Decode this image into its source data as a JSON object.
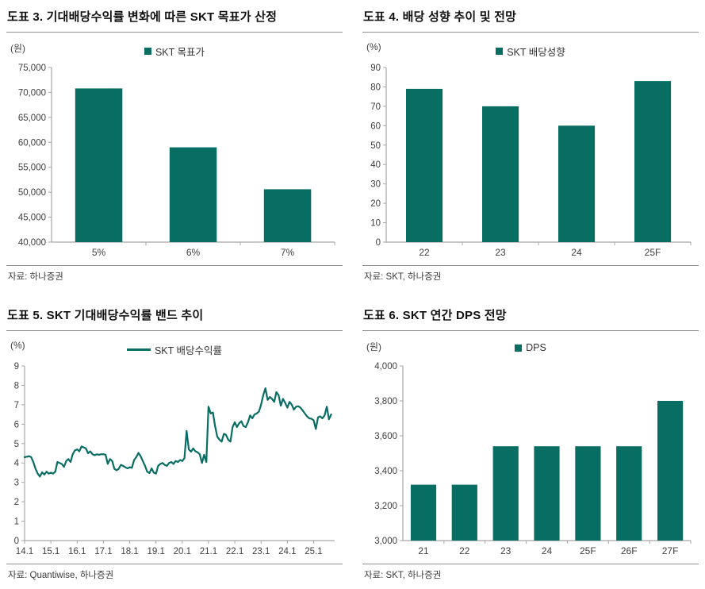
{
  "colors": {
    "accent": "#086e64",
    "axis": "#a6a6a6",
    "tick_text": "#404040",
    "title_text": "#111111",
    "divider": "#8f8f8f"
  },
  "chart_data": [
    {
      "type": "bar",
      "title": "도표 3. 기대배당수익률 변화에 따른 SKT 목표가 산정",
      "unit": "(원)",
      "legend": "SKT 목표가",
      "categories": [
        "5%",
        "6%",
        "7%"
      ],
      "values": [
        70800,
        59000,
        50600
      ],
      "ylim": [
        40000,
        75000
      ],
      "ytick_step": 5000,
      "comma": true,
      "bar_ratio": 0.5,
      "legend_position": "top-center",
      "grid": false,
      "source": "자료: 하나증권"
    },
    {
      "type": "bar",
      "title": "도표 4. 배당 성향 추이 및 전망",
      "unit": "(%)",
      "legend": "SKT 배당성향",
      "categories": [
        "22",
        "23",
        "24",
        "25F"
      ],
      "values": [
        79,
        70,
        60,
        83
      ],
      "ylim": [
        0,
        90
      ],
      "ytick_step": 10,
      "comma": false,
      "bar_ratio": 0.48,
      "legend_position": "top-center",
      "grid": false,
      "source": "자료: SKT, 하나증권"
    },
    {
      "type": "line",
      "title": "도표 5. SKT 기대배당수익률 밴드 추이",
      "unit": "(%)",
      "legend": "SKT 배당수익률",
      "x_start_year": 2014,
      "points_per_year": 12,
      "x_axis_years": 11.8,
      "xtick_labels": [
        "14.1",
        "15.1",
        "16.1",
        "17.1",
        "18.1",
        "19.1",
        "20.1",
        "21.1",
        "22.1",
        "23.1",
        "24.1",
        "25.1"
      ],
      "values": [
        4.3,
        4.32,
        4.35,
        4.3,
        4.05,
        3.7,
        3.45,
        3.3,
        3.52,
        3.4,
        3.55,
        3.45,
        3.5,
        3.45,
        3.55,
        4.05,
        4.0,
        3.95,
        3.8,
        4.1,
        4.2,
        4.05,
        4.45,
        4.65,
        4.7,
        4.6,
        4.85,
        4.8,
        4.75,
        4.5,
        4.6,
        4.45,
        4.4,
        4.45,
        4.42,
        4.45,
        4.45,
        4.42,
        3.95,
        4.2,
        4.1,
        3.7,
        3.62,
        3.7,
        3.9,
        3.85,
        3.78,
        3.72,
        3.78,
        3.75,
        4.15,
        4.3,
        4.52,
        4.35,
        4.1,
        3.85,
        3.55,
        3.48,
        3.72,
        3.5,
        3.45,
        3.85,
        3.95,
        4.0,
        3.9,
        3.85,
        4.0,
        4.05,
        3.95,
        4.1,
        4.05,
        4.15,
        4.1,
        4.25,
        5.65,
        4.7,
        4.58,
        4.75,
        4.6,
        4.55,
        4.45,
        4.0,
        4.42,
        4.05,
        6.9,
        6.55,
        6.6,
        5.9,
        5.35,
        5.2,
        5.1,
        5.5,
        5.45,
        5.2,
        5.1,
        5.85,
        6.1,
        5.85,
        6.05,
        6.15,
        5.9,
        5.85,
        6.1,
        6.45,
        6.3,
        6.5,
        6.55,
        6.65,
        7.0,
        7.5,
        7.85,
        7.25,
        7.4,
        7.3,
        7.15,
        7.65,
        7.5,
        6.95,
        7.3,
        7.1,
        6.85,
        7.15,
        7.0,
        6.75,
        6.9,
        6.92,
        6.85,
        6.7,
        6.55,
        6.4,
        6.3,
        6.28,
        6.2,
        5.75,
        6.35,
        6.4,
        6.3,
        6.45,
        6.9,
        6.25,
        6.5
      ],
      "ylim": [
        0,
        9
      ],
      "ytick_step": 1,
      "comma": false,
      "legend_position": "top-center",
      "grid": false,
      "source": "자료: Quantiwise, 하나증권"
    },
    {
      "type": "bar",
      "title": "도표 6. SKT 연간 DPS 전망",
      "unit": "(원)",
      "legend": "DPS",
      "categories": [
        "21",
        "22",
        "23",
        "24",
        "25F",
        "26F",
        "27F"
      ],
      "values": [
        3320,
        3320,
        3540,
        3540,
        3540,
        3540,
        3800
      ],
      "ylim": [
        3000,
        4000
      ],
      "ytick_step": 200,
      "comma": true,
      "bar_ratio": 0.62,
      "legend_position": "top-center",
      "grid": false,
      "source": "자료: SKT, 하나증권"
    }
  ]
}
